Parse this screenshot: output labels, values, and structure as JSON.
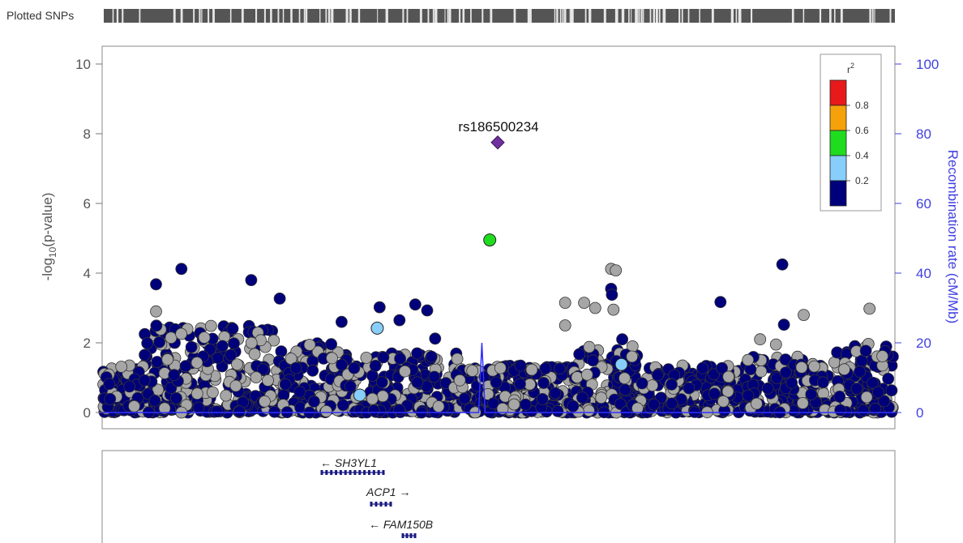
{
  "chart_data": {
    "type": "scatter",
    "track_label": "Plotted SNPs",
    "y_axis": {
      "label_main": "-log",
      "label_sub": "10",
      "label_rest": "(p-value)",
      "ylim": [
        0,
        10
      ],
      "ticks": [
        "0",
        "2",
        "4",
        "6",
        "8",
        "10"
      ]
    },
    "y2_axis": {
      "label": "Recombination rate (cM/Mb)",
      "ylim": [
        0,
        100
      ],
      "ticks": [
        "0",
        "20",
        "40",
        "60",
        "80",
        "100"
      ],
      "color": "#4040e0"
    },
    "lead_snp": {
      "label": "rs186500234",
      "logp": 7.75,
      "color": "#7030a0",
      "pos": 0.499
    },
    "legend": {
      "title": "r",
      "title_sup": "2",
      "bins": [
        {
          "color": "#e8191b",
          "label": "0.8"
        },
        {
          "color": "#f5a20a",
          "label": "0.6"
        },
        {
          "color": "#1fdc1f",
          "label": "0.4"
        },
        {
          "color": "#87cefa",
          "label": "0.2"
        },
        {
          "color": "#00007a",
          "label": ""
        }
      ]
    },
    "highlighted_points": [
      {
        "pos": 0.489,
        "logp": 4.95,
        "r2_bin": "0.4-0.6",
        "color": "#1fdc1f"
      },
      {
        "pos": 0.347,
        "logp": 2.42,
        "r2_bin": "0.2-0.4",
        "color": "#87cefa"
      },
      {
        "pos": 0.325,
        "logp": 0.5,
        "r2_bin": "0.2-0.4",
        "color": "#87cefa"
      },
      {
        "pos": 0.655,
        "logp": 1.38,
        "r2_bin": "0.2-0.4",
        "color": "#87cefa"
      }
    ],
    "top_points": [
      {
        "pos": 0.1,
        "logp": 4.12,
        "r2_bin": "<0.2"
      },
      {
        "pos": 0.068,
        "logp": 3.68,
        "r2_bin": "<0.2"
      },
      {
        "pos": 0.188,
        "logp": 3.8,
        "r2_bin": "<0.2"
      },
      {
        "pos": 0.224,
        "logp": 3.27,
        "r2_bin": "<0.2"
      },
      {
        "pos": 0.35,
        "logp": 3.02,
        "r2_bin": "<0.2"
      },
      {
        "pos": 0.395,
        "logp": 3.1,
        "r2_bin": "<0.2"
      },
      {
        "pos": 0.41,
        "logp": 2.93,
        "r2_bin": "<0.2"
      },
      {
        "pos": 0.78,
        "logp": 3.17,
        "r2_bin": "<0.2"
      },
      {
        "pos": 0.858,
        "logp": 4.25,
        "r2_bin": "<0.2"
      },
      {
        "pos": 0.642,
        "logp": 3.55,
        "r2_bin": "<0.2"
      },
      {
        "pos": 0.643,
        "logp": 3.38,
        "r2_bin": "<0.2"
      },
      {
        "pos": 0.302,
        "logp": 2.6,
        "r2_bin": "<0.2"
      },
      {
        "pos": 0.375,
        "logp": 2.65,
        "r2_bin": "<0.2"
      },
      {
        "pos": 0.86,
        "logp": 2.52,
        "r2_bin": "<0.2"
      },
      {
        "pos": 0.656,
        "logp": 2.1,
        "r2_bin": "<0.2"
      },
      {
        "pos": 0.42,
        "logp": 2.12,
        "r2_bin": "<0.2"
      }
    ],
    "grey_top_points": [
      {
        "pos": 0.642,
        "logp": 4.12
      },
      {
        "pos": 0.648,
        "logp": 4.08
      },
      {
        "pos": 0.584,
        "logp": 3.15
      },
      {
        "pos": 0.608,
        "logp": 3.15
      },
      {
        "pos": 0.622,
        "logp": 3.0
      },
      {
        "pos": 0.645,
        "logp": 2.95
      },
      {
        "pos": 0.584,
        "logp": 2.5
      },
      {
        "pos": 0.068,
        "logp": 2.9
      },
      {
        "pos": 0.885,
        "logp": 2.8
      },
      {
        "pos": 0.968,
        "logp": 2.98
      },
      {
        "pos": 0.83,
        "logp": 2.1
      },
      {
        "pos": 0.85,
        "logp": 1.95
      }
    ],
    "recombination_peak": {
      "pos": 0.479,
      "rate": 20
    }
  },
  "genes": [
    {
      "name": "SH3YL1",
      "arrow": "←",
      "direction": "minus"
    },
    {
      "name": "ACP1",
      "arrow": "→",
      "direction": "plus"
    },
    {
      "name": "FAM150B",
      "arrow": "←",
      "direction": "minus"
    }
  ]
}
